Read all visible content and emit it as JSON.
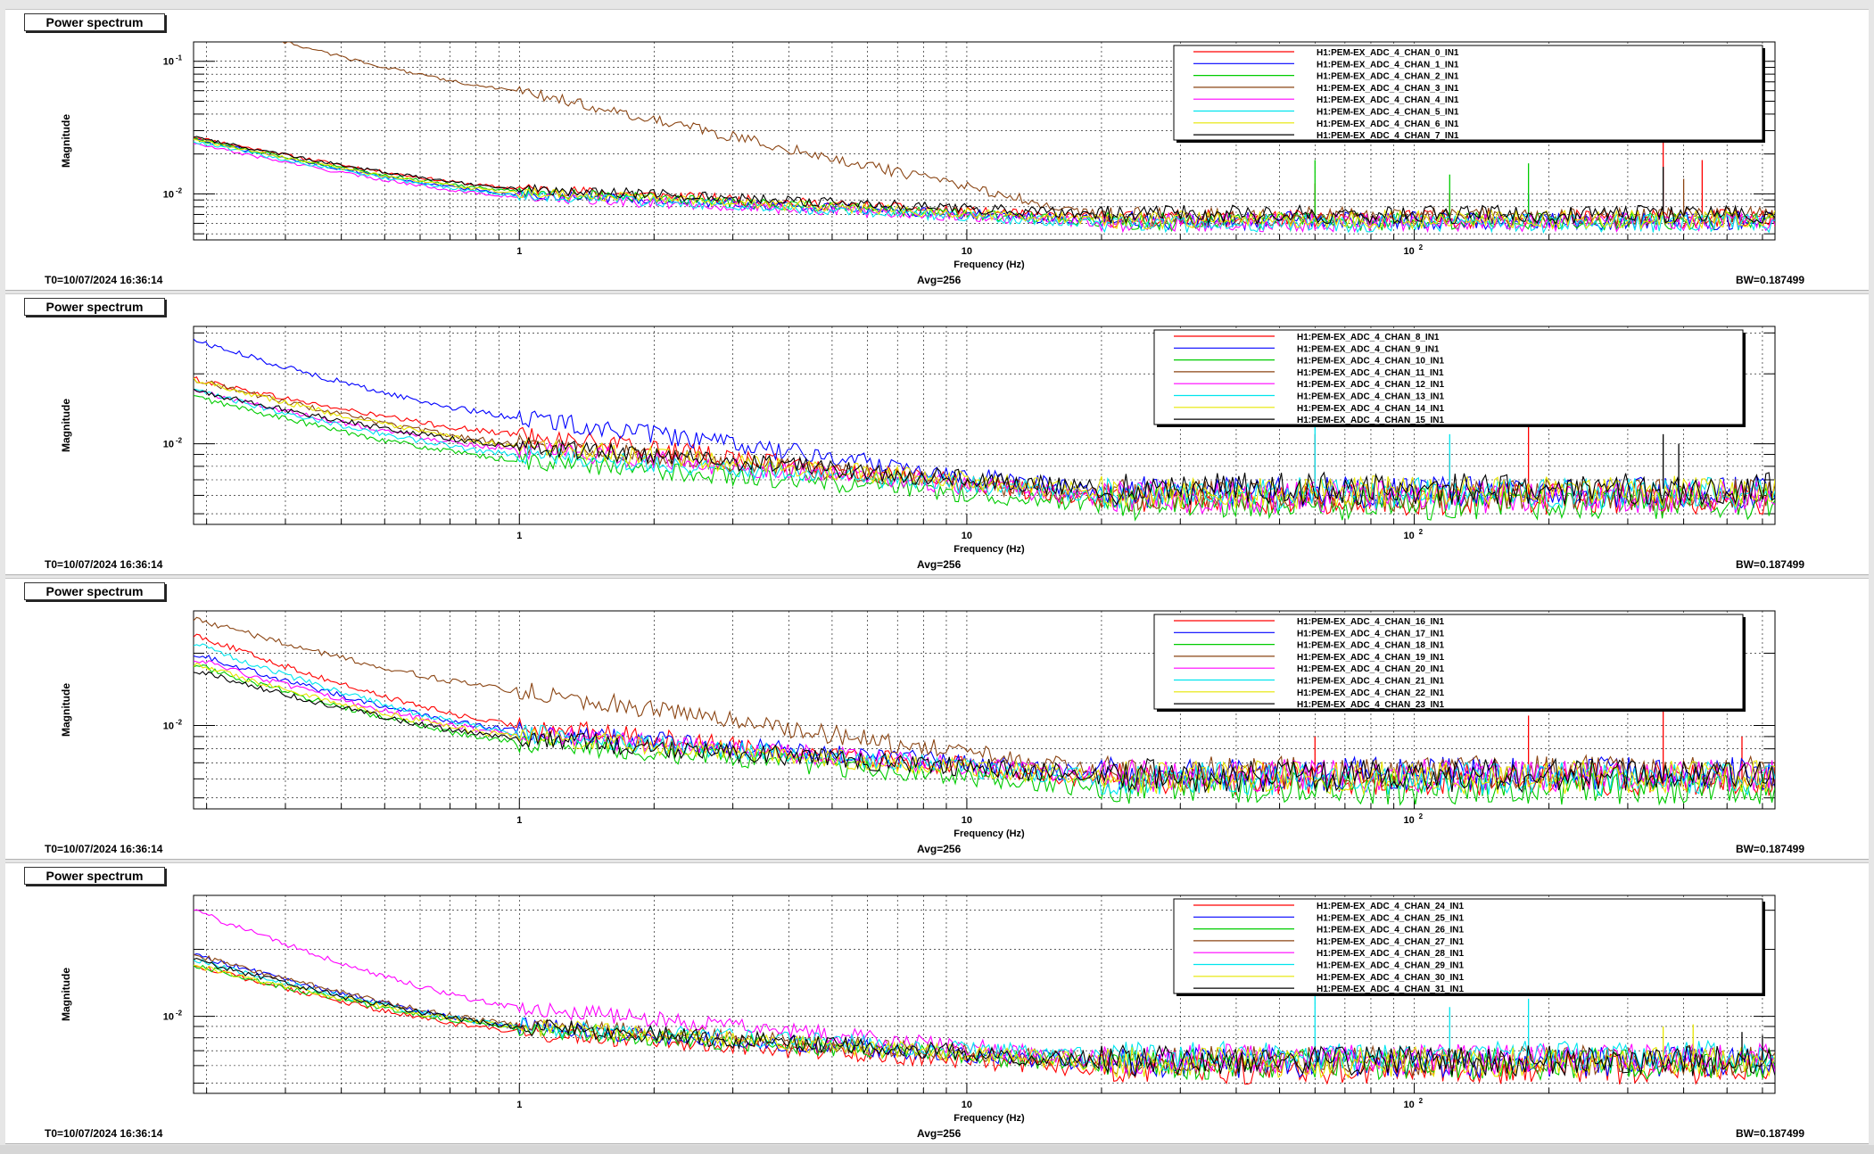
{
  "footer": {
    "t0": "T0=10/07/2024 16:36:14",
    "avg": "Avg=256",
    "bw": "BW=0.187499"
  },
  "axis": {
    "xlabel": "Frequency (Hz)",
    "ylabel": "Magnitude",
    "xticks": [
      {
        "v": 1,
        "label": "1"
      },
      {
        "v": 10,
        "label": "10"
      },
      {
        "v": 100,
        "label": "10",
        "sup": "2"
      }
    ],
    "xlim": [
      0.187,
      640
    ]
  },
  "colors": [
    "#ff0000",
    "#0000ff",
    "#00cc00",
    "#8b4513",
    "#ff00ff",
    "#00e5ee",
    "#e6e600",
    "#000000"
  ],
  "chart_data": [
    {
      "type": "line",
      "title": "Power spectrum",
      "xscale": "log",
      "yscale": "log",
      "ylim": [
        0.0045,
        0.14
      ],
      "yticks": [
        {
          "v": 0.1,
          "label": "10",
          "sup": "-1"
        },
        {
          "v": 0.01,
          "label": "10",
          "sup": "-2"
        }
      ],
      "legend_left": 1310,
      "series": [
        {
          "name": "H1:PEM-EX_ADC_4_CHAN_0_IN1",
          "start": 0.027,
          "mid": 0.011,
          "floor": 0.0065,
          "spikes": [
            [
              60,
              0.012
            ],
            [
              120,
              0.01
            ],
            [
              360,
              0.03
            ],
            [
              440,
              0.018
            ]
          ]
        },
        {
          "name": "H1:PEM-EX_ADC_4_CHAN_1_IN1",
          "start": 0.026,
          "mid": 0.01,
          "floor": 0.0063,
          "spikes": [
            [
              180,
              0.01
            ]
          ]
        },
        {
          "name": "H1:PEM-EX_ADC_4_CHAN_2_IN1",
          "start": 0.026,
          "mid": 0.0105,
          "floor": 0.0062,
          "spikes": [
            [
              60,
              0.018
            ],
            [
              120,
              0.014
            ],
            [
              180,
              0.017
            ]
          ]
        },
        {
          "name": "H1:PEM-EX_ADC_4_CHAN_3_IN1",
          "start": 0.22,
          "mid": 0.06,
          "floor": 0.0068,
          "spikes": [
            [
              400,
              0.013
            ]
          ]
        },
        {
          "name": "H1:PEM-EX_ADC_4_CHAN_4_IN1",
          "start": 0.024,
          "mid": 0.0095,
          "floor": 0.0061,
          "spikes": []
        },
        {
          "name": "H1:PEM-EX_ADC_4_CHAN_5_IN1",
          "start": 0.025,
          "mid": 0.0098,
          "floor": 0.006,
          "spikes": []
        },
        {
          "name": "H1:PEM-EX_ADC_4_CHAN_6_IN1",
          "start": 0.026,
          "mid": 0.0102,
          "floor": 0.0064,
          "spikes": []
        },
        {
          "name": "H1:PEM-EX_ADC_4_CHAN_7_IN1",
          "start": 0.027,
          "mid": 0.011,
          "floor": 0.007,
          "spikes": [
            [
              360,
              0.016
            ]
          ]
        }
      ]
    },
    {
      "type": "line",
      "title": "Power spectrum",
      "xscale": "log",
      "yscale": "log",
      "ylim": [
        0.0045,
        0.032
      ],
      "yticks": [
        {
          "v": 0.01,
          "label": "10",
          "sup": "-2"
        }
      ],
      "legend_left": 1288,
      "series": [
        {
          "name": "H1:PEM-EX_ADC_4_CHAN_8_IN1",
          "start": 0.019,
          "mid": 0.011,
          "floor": 0.0058,
          "spikes": [
            [
              60,
              0.011
            ],
            [
              120,
              0.009
            ],
            [
              180,
              0.013
            ]
          ]
        },
        {
          "name": "H1:PEM-EX_ADC_4_CHAN_9_IN1",
          "start": 0.028,
          "mid": 0.013,
          "floor": 0.0062,
          "spikes": []
        },
        {
          "name": "H1:PEM-EX_ADC_4_CHAN_10_IN1",
          "start": 0.016,
          "mid": 0.0085,
          "floor": 0.0055,
          "spikes": []
        },
        {
          "name": "H1:PEM-EX_ADC_4_CHAN_11_IN1",
          "start": 0.019,
          "mid": 0.01,
          "floor": 0.006,
          "spikes": []
        },
        {
          "name": "H1:PEM-EX_ADC_4_CHAN_12_IN1",
          "start": 0.017,
          "mid": 0.0095,
          "floor": 0.0059,
          "spikes": []
        },
        {
          "name": "H1:PEM-EX_ADC_4_CHAN_13_IN1",
          "start": 0.017,
          "mid": 0.009,
          "floor": 0.0061,
          "spikes": [
            [
              60,
              0.014
            ],
            [
              120,
              0.011
            ]
          ]
        },
        {
          "name": "H1:PEM-EX_ADC_4_CHAN_14_IN1",
          "start": 0.019,
          "mid": 0.0098,
          "floor": 0.0062,
          "spikes": []
        },
        {
          "name": "H1:PEM-EX_ADC_4_CHAN_15_IN1",
          "start": 0.017,
          "mid": 0.0098,
          "floor": 0.0064,
          "spikes": [
            [
              360,
              0.011
            ],
            [
              390,
              0.01
            ]
          ]
        }
      ]
    },
    {
      "type": "line",
      "title": "Power spectrum",
      "xscale": "log",
      "yscale": "log",
      "ylim": [
        0.0045,
        0.03
      ],
      "yticks": [
        {
          "v": 0.01,
          "label": "10",
          "sup": "-2"
        }
      ],
      "legend_left": 1288,
      "series": [
        {
          "name": "H1:PEM-EX_ADC_4_CHAN_16_IN1",
          "start": 0.024,
          "mid": 0.01,
          "floor": 0.006,
          "spikes": [
            [
              60,
              0.009
            ],
            [
              180,
              0.011
            ],
            [
              360,
              0.012
            ],
            [
              540,
              0.009
            ]
          ]
        },
        {
          "name": "H1:PEM-EX_ADC_4_CHAN_17_IN1",
          "start": 0.02,
          "mid": 0.0095,
          "floor": 0.0063,
          "spikes": []
        },
        {
          "name": "H1:PEM-EX_ADC_4_CHAN_18_IN1",
          "start": 0.018,
          "mid": 0.0085,
          "floor": 0.0055,
          "spikes": []
        },
        {
          "name": "H1:PEM-EX_ADC_4_CHAN_19_IN1",
          "start": 0.028,
          "mid": 0.014,
          "floor": 0.0064,
          "spikes": []
        },
        {
          "name": "H1:PEM-EX_ADC_4_CHAN_20_IN1",
          "start": 0.019,
          "mid": 0.0092,
          "floor": 0.0062,
          "spikes": []
        },
        {
          "name": "H1:PEM-EX_ADC_4_CHAN_21_IN1",
          "start": 0.022,
          "mid": 0.0093,
          "floor": 0.006,
          "spikes": []
        },
        {
          "name": "H1:PEM-EX_ADC_4_CHAN_22_IN1",
          "start": 0.018,
          "mid": 0.009,
          "floor": 0.0061,
          "spikes": []
        },
        {
          "name": "H1:PEM-EX_ADC_4_CHAN_23_IN1",
          "start": 0.017,
          "mid": 0.0088,
          "floor": 0.0062,
          "spikes": []
        }
      ]
    },
    {
      "type": "line",
      "title": "Power spectrum",
      "xscale": "log",
      "yscale": "log",
      "ylim": [
        0.0045,
        0.035
      ],
      "yticks": [
        {
          "v": 0.01,
          "label": "10",
          "sup": "-2"
        }
      ],
      "legend_left": 1310,
      "series": [
        {
          "name": "H1:PEM-EX_ADC_4_CHAN_24_IN1",
          "start": 0.017,
          "mid": 0.0085,
          "floor": 0.0058,
          "spikes": [
            [
              180,
              0.008
            ]
          ]
        },
        {
          "name": "H1:PEM-EX_ADC_4_CHAN_25_IN1",
          "start": 0.019,
          "mid": 0.009,
          "floor": 0.0062,
          "spikes": []
        },
        {
          "name": "H1:PEM-EX_ADC_4_CHAN_26_IN1",
          "start": 0.017,
          "mid": 0.0088,
          "floor": 0.0061,
          "spikes": []
        },
        {
          "name": "H1:PEM-EX_ADC_4_CHAN_27_IN1",
          "start": 0.019,
          "mid": 0.0092,
          "floor": 0.0063,
          "spikes": []
        },
        {
          "name": "H1:PEM-EX_ADC_4_CHAN_28_IN1",
          "start": 0.03,
          "mid": 0.011,
          "floor": 0.0064,
          "spikes": []
        },
        {
          "name": "H1:PEM-EX_ADC_4_CHAN_29_IN1",
          "start": 0.018,
          "mid": 0.009,
          "floor": 0.0066,
          "spikes": [
            [
              60,
              0.013
            ],
            [
              120,
              0.011
            ],
            [
              180,
              0.012
            ]
          ]
        },
        {
          "name": "H1:PEM-EX_ADC_4_CHAN_30_IN1",
          "start": 0.017,
          "mid": 0.009,
          "floor": 0.0062,
          "spikes": [
            [
              360,
              0.009
            ],
            [
              420,
              0.0092
            ]
          ]
        },
        {
          "name": "H1:PEM-EX_ADC_4_CHAN_31_IN1",
          "start": 0.018,
          "mid": 0.009,
          "floor": 0.0063,
          "spikes": [
            [
              540,
              0.0085
            ],
            [
              600,
              0.0082
            ]
          ]
        }
      ]
    }
  ]
}
